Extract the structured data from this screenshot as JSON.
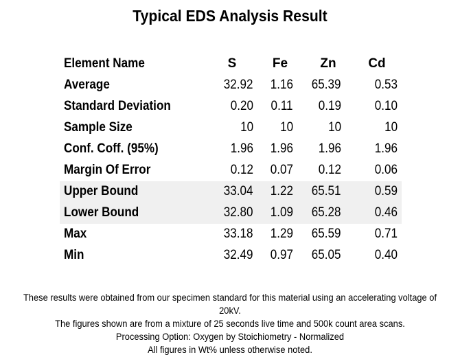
{
  "title": "Typical EDS Analysis Result",
  "header": {
    "label": "Element Name",
    "elements": [
      "S",
      "Fe",
      "Zn",
      "Cd"
    ]
  },
  "rows": [
    {
      "label": "Average",
      "values": [
        "32.92",
        "1.16",
        "65.39",
        "0.53"
      ],
      "shaded": false
    },
    {
      "label": "Standard Deviation",
      "values": [
        "0.20",
        "0.11",
        "0.19",
        "0.10"
      ],
      "shaded": false
    },
    {
      "label": "Sample Size",
      "values": [
        "10",
        "10",
        "10",
        "10"
      ],
      "shaded": false
    },
    {
      "label": "Conf. Coff. (95%)",
      "values": [
        "1.96",
        "1.96",
        "1.96",
        "1.96"
      ],
      "shaded": false
    },
    {
      "label": "Margin Of Error",
      "values": [
        "0.12",
        "0.07",
        "0.12",
        "0.06"
      ],
      "shaded": false
    },
    {
      "label": "Upper Bound",
      "values": [
        "33.04",
        "1.22",
        "65.51",
        "0.59"
      ],
      "shaded": true
    },
    {
      "label": "Lower Bound",
      "values": [
        "32.80",
        "1.09",
        "65.28",
        "0.46"
      ],
      "shaded": true
    },
    {
      "label": "Max",
      "values": [
        "33.18",
        "1.29",
        "65.59",
        "0.71"
      ],
      "shaded": false
    },
    {
      "label": "Min",
      "values": [
        "32.49",
        "0.97",
        "65.05",
        "0.40"
      ],
      "shaded": false
    }
  ],
  "notes": [
    "These results were obtained from our specimen standard for this material using an accelerating voltage of 20kV.",
    "The figures shown are from a mixture of 25 seconds live time and 500k count area scans.",
    "Processing Option: Oxygen by Stoichiometry - Normalized",
    "All figures in Wt% unless otherwise noted."
  ]
}
